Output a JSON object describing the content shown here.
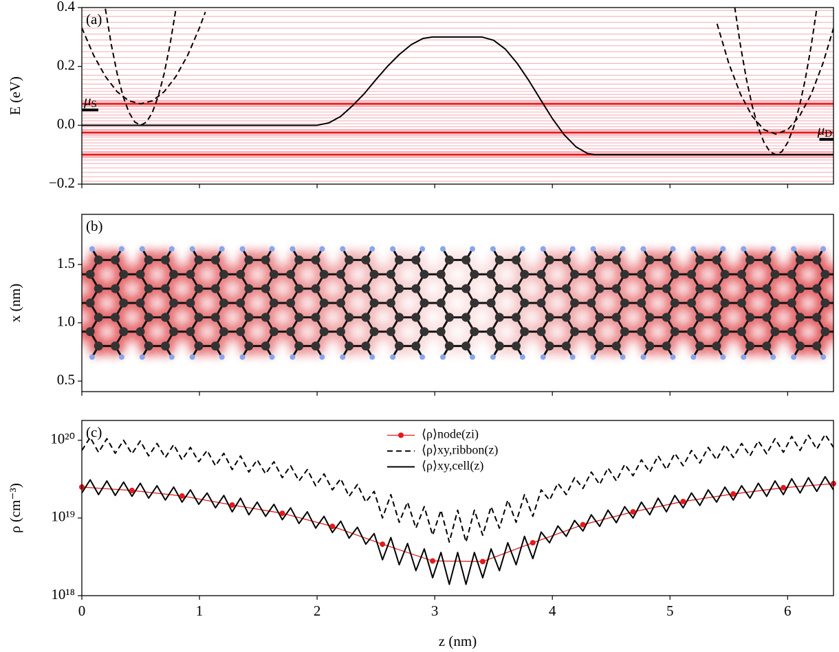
{
  "chart_data": [
    {
      "type": "line",
      "panel_label": "(a)",
      "ylabel": "E (eV)",
      "xlim": [
        0,
        6.39
      ],
      "ylim": [
        -0.2,
        0.4
      ],
      "xticks": [
        0,
        1,
        2,
        3,
        4,
        5,
        6
      ],
      "yticks": [
        {
          "value": -0.2,
          "label": "−0.2"
        },
        {
          "value": 0,
          "label": "0.0"
        },
        0.2,
        0.4
      ],
      "levels": [
        -0.19,
        -0.175,
        -0.16,
        -0.145,
        -0.13,
        -0.118,
        -0.108,
        -0.09,
        -0.08,
        -0.07,
        -0.06,
        -0.05,
        -0.04,
        -0.015,
        -0.005,
        0.005,
        0.015,
        0.025,
        0.035,
        0.045,
        0.055,
        0.065,
        0.085,
        0.095,
        0.105,
        0.115,
        0.125,
        0.14,
        0.155,
        0.17,
        0.19,
        0.21,
        0.23,
        0.25,
        0.27,
        0.29,
        0.31,
        0.33,
        0.35,
        0.37,
        0.39
      ],
      "levels_color": "#f4a0a8",
      "bright_levels": [
        0.073,
        -0.025,
        -0.1
      ],
      "bright_color": "#e41a1c",
      "series": [
        {
          "color": "#000000",
          "style": "solid",
          "x": [
            0,
            2.0,
            2.1,
            2.2,
            2.3,
            2.4,
            2.5,
            2.6,
            2.7,
            2.8,
            2.9,
            2.98,
            3.4,
            3.5,
            3.6,
            3.7,
            3.8,
            3.9,
            4.0,
            4.1,
            4.2,
            4.3,
            4.36,
            6.39
          ],
          "values": [
            0,
            0,
            0.008,
            0.03,
            0.066,
            0.107,
            0.155,
            0.201,
            0.241,
            0.274,
            0.295,
            0.3,
            0.3,
            0.289,
            0.259,
            0.211,
            0.152,
            0.087,
            0.023,
            -0.032,
            -0.073,
            -0.096,
            -0.1,
            -0.1
          ]
        },
        {
          "color": "#000000",
          "style": "dashed",
          "x": [
            0.2,
            0.25,
            0.3,
            0.35,
            0.4,
            0.45,
            0.5,
            0.55,
            0.6,
            0.65,
            0.7,
            0.75,
            0.8
          ],
          "values": [
            0.396,
            0.275,
            0.176,
            0.099,
            0.044,
            0.011,
            0,
            0.011,
            0.044,
            0.099,
            0.176,
            0.275,
            0.396
          ]
        },
        {
          "color": "#000000",
          "style": "dashed",
          "x": [
            0,
            0.1,
            0.2,
            0.3,
            0.4,
            0.5,
            0.6,
            0.7,
            0.8,
            0.9,
            1.0,
            1.05
          ],
          "values": [
            0.331,
            0.238,
            0.166,
            0.114,
            0.083,
            0.073,
            0.083,
            0.114,
            0.166,
            0.238,
            0.331,
            0.385
          ]
        },
        {
          "color": "#000000",
          "style": "dashed",
          "x": [
            5.55,
            5.6,
            5.65,
            5.7,
            5.75,
            5.8,
            5.85,
            5.9,
            5.95,
            6.0,
            6.05,
            6.1,
            6.15,
            6.2,
            6.25
          ],
          "values": [
            0.402,
            0.269,
            0.156,
            0.064,
            -0.008,
            -0.059,
            -0.09,
            -0.1,
            -0.09,
            -0.059,
            -0.008,
            0.064,
            0.156,
            0.269,
            0.402
          ]
        },
        {
          "color": "#000000",
          "style": "dashed",
          "x": [
            5.4,
            5.5,
            5.6,
            5.7,
            5.8,
            5.9,
            6.0,
            6.1,
            6.2,
            6.3,
            6.39
          ],
          "values": [
            0.345,
            0.21,
            0.105,
            0.03,
            -0.015,
            -0.03,
            -0.015,
            0.03,
            0.105,
            0.21,
            0.33
          ]
        }
      ],
      "markers": [
        {
          "symbol": "μ",
          "sub": "S",
          "x": [
            0,
            0.14
          ],
          "value": 0.052,
          "side": "left"
        },
        {
          "symbol": "μ",
          "sub": "D",
          "x": [
            6.27,
            6.39
          ],
          "value": -0.048,
          "side": "right"
        }
      ]
    },
    {
      "type": "lattice",
      "panel_label": "(b)",
      "ylabel": "x (nm)",
      "xlim": [
        0,
        6.39
      ],
      "ylim": [
        0.41,
        1.93
      ],
      "xticks": [
        0,
        1,
        2,
        3,
        4,
        5,
        6
      ],
      "yticks": [
        0.5,
        {
          "value": 1,
          "label": "1.0"
        },
        1.5
      ],
      "carbon_color": "#333333",
      "hydrogen_color": "#87a6ee",
      "glow_color": "#d7191c"
    },
    {
      "type": "line",
      "log_y": true,
      "panel_label": "(c)",
      "ylabel": "ρ (cm⁻³)",
      "xlabel": "z (nm)",
      "xlim": [
        0,
        6.39
      ],
      "ylim": [
        1e+18,
        1.8e+20
      ],
      "xticks": [
        0,
        1,
        2,
        3,
        4,
        5,
        6
      ],
      "yticks": [
        {
          "value": 1e+18,
          "label": "10¹⁸"
        },
        {
          "value": 1e+19,
          "label": "10¹⁹"
        },
        {
          "value": 1e+20,
          "label": "10²⁰"
        }
      ],
      "legend": "upper center",
      "x": [
        0,
        0.071,
        0.142,
        0.213,
        0.284,
        0.355,
        0.426,
        0.497,
        0.568,
        0.639,
        0.71,
        0.781,
        0.852,
        0.923,
        0.994,
        1.065,
        1.136,
        1.207,
        1.278,
        1.349,
        1.42,
        1.491,
        1.562,
        1.633,
        1.704,
        1.775,
        1.846,
        1.917,
        1.988,
        2.059,
        2.13,
        2.201,
        2.272,
        2.343,
        2.414,
        2.485,
        2.556,
        2.627,
        2.698,
        2.769,
        2.84,
        2.911,
        2.982,
        3.053,
        3.124,
        3.195,
        3.266,
        3.337,
        3.408,
        3.479,
        3.55,
        3.621,
        3.692,
        3.763,
        3.834,
        3.905,
        3.976,
        4.047,
        4.118,
        4.189,
        4.26,
        4.331,
        4.402,
        4.473,
        4.544,
        4.615,
        4.686,
        4.757,
        4.828,
        4.899,
        4.97,
        5.041,
        5.112,
        5.183,
        5.254,
        5.325,
        5.396,
        5.467,
        5.538,
        5.609,
        5.68,
        5.751,
        5.822,
        5.893,
        5.964,
        6.035,
        6.106,
        6.177,
        6.248,
        6.319,
        6.39
      ],
      "series": [
        {
          "name": "⟨ρ⟩node(zi)",
          "color": "#e41a1c",
          "style": "solid",
          "marker": true,
          "x": [
            0,
            0.426,
            0.852,
            1.278,
            1.704,
            2.13,
            2.556,
            2.982,
            3.408,
            3.834,
            4.26,
            4.686,
            5.112,
            5.538,
            5.964,
            6.39
          ],
          "values": [
            2.5e+19,
            2.26e+19,
            1.92e+19,
            1.47e+19,
            1.15e+19,
            7.8e+18,
            4.6e+18,
            2.8e+18,
            2.75e+18,
            4.8e+18,
            8.2e+18,
            1.2e+19,
            1.63e+19,
            2.04e+19,
            2.45e+19,
            2.77e+19
          ]
        },
        {
          "name": "⟨ρ⟩xy,ribbon(z)",
          "color": "#000000",
          "style": "dashed",
          "values": [
            7.4e+19,
            1.09e+20,
            7e+19,
            1.05e+20,
            6.8e+19,
            1e+20,
            6.7e+19,
            9.8e+19,
            6.3e+19,
            9.1e+19,
            6e+19,
            8.8e+19,
            5.6e+19,
            8.1e+19,
            5.3e+19,
            7.4e+19,
            4.7e+19,
            6.8e+19,
            4.2e+19,
            6.3e+19,
            3.9e+19,
            5.6e+19,
            3.7e+19,
            5.3e+19,
            3.3e+19,
            4.7e+19,
            3e+19,
            4.2e+19,
            2.6e+19,
            3.7e+19,
            2.3e+19,
            3.2e+19,
            1.9e+19,
            2.7e+19,
            1.6e+19,
            2.2e+19,
            1e+19,
            2e+19,
            8.8e+18,
            1.6e+19,
            7.4e+18,
            1.4e+19,
            6e+18,
            1.26e+19,
            4.9e+18,
            1.26e+19,
            4.9e+18,
            1.26e+19,
            6e+18,
            1.4e+19,
            7.4e+18,
            1.7e+19,
            8.8e+18,
            2e+19,
            1.05e+19,
            2.3e+19,
            1.7e+19,
            2.8e+19,
            2e+19,
            3.3e+19,
            2.4e+19,
            3.9e+19,
            2.7e+19,
            4.4e+19,
            3e+19,
            4.9e+19,
            3.5e+19,
            5.6e+19,
            3.9e+19,
            6.3e+19,
            4.2e+19,
            6.8e+19,
            4.7e+19,
            7.4e+19,
            5.1e+19,
            8.1e+19,
            5.6e+19,
            8.8e+19,
            6e+19,
            9.1e+19,
            6.3e+19,
            9.8e+19,
            6.7e+19,
            1.05e+20,
            7e+19,
            1.12e+20,
            7.4e+19,
            1.16e+20,
            7.7e+19,
            1.19e+20,
            8.1e+19
          ]
        },
        {
          "name": "⟨ρ⟩xy,cell(z)",
          "color": "#000000",
          "style": "solid",
          "values": [
            2.1e+19,
            3.1e+19,
            2e+19,
            3e+19,
            1.95e+19,
            2.9e+19,
            1.9e+19,
            2.8e+19,
            1.8e+19,
            2.6e+19,
            1.7e+19,
            2.5e+19,
            1.6e+19,
            2.3e+19,
            1.5e+19,
            2.1e+19,
            1.35e+19,
            1.95e+19,
            1.2e+19,
            1.8e+19,
            1.1e+19,
            1.6e+19,
            1.05e+19,
            1.5e+19,
            9.5e+18,
            1.35e+19,
            8.5e+18,
            1.2e+19,
            7.4e+18,
            1.05e+19,
            6.5e+18,
            9.1e+18,
            5.5e+18,
            7.6e+18,
            4.6e+18,
            6.3e+18,
            2.9e+18,
            5.6e+18,
            2.5e+18,
            4.7e+18,
            2.1e+18,
            4e+18,
            1.7e+18,
            3.6e+18,
            1.4e+18,
            3.6e+18,
            1.4e+18,
            3.6e+18,
            1.7e+18,
            4e+18,
            2.1e+18,
            4.8e+18,
            2.5e+18,
            5.8e+18,
            3e+18,
            6.6e+18,
            4.8e+18,
            7.9e+18,
            5.8e+18,
            9.3e+18,
            6.8e+18,
            1.1e+19,
            7.8e+18,
            1.26e+19,
            8.7e+18,
            1.4e+19,
            1e+19,
            1.6e+19,
            1.1e+19,
            1.8e+19,
            1.2e+19,
            1.95e+19,
            1.35e+19,
            2.1e+19,
            1.45e+19,
            2.3e+19,
            1.6e+19,
            2.5e+19,
            1.7e+19,
            2.6e+19,
            1.8e+19,
            2.8e+19,
            1.9e+19,
            3e+19,
            2e+19,
            3.2e+19,
            2.1e+19,
            3.3e+19,
            2.2e+19,
            3.4e+19,
            2.3e+19
          ]
        }
      ]
    }
  ]
}
